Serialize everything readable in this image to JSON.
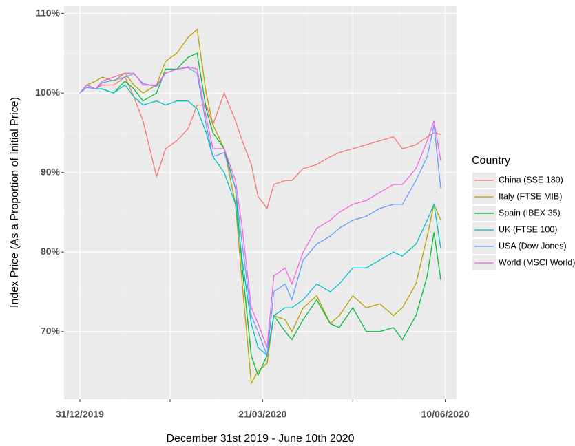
{
  "chart_data": {
    "type": "line",
    "y_label": "Index Price (As a Proportion of Initial Price)",
    "x_label": "December 31st 2019 - June 10th 2020",
    "legend_title": "Country",
    "legend": "right",
    "grid": true,
    "x": [
      "2019-12-31",
      "2020-01-03",
      "2020-01-07",
      "2020-01-10",
      "2020-01-15",
      "2020-01-20",
      "2020-01-24",
      "2020-01-28",
      "2020-02-03",
      "2020-02-07",
      "2020-02-12",
      "2020-02-17",
      "2020-02-21",
      "2020-02-25",
      "2020-02-28",
      "2020-03-04",
      "2020-03-09",
      "2020-03-12",
      "2020-03-16",
      "2020-03-19",
      "2020-03-23",
      "2020-03-26",
      "2020-03-31",
      "2020-04-03",
      "2020-04-08",
      "2020-04-14",
      "2020-04-20",
      "2020-04-24",
      "2020-04-30",
      "2020-05-06",
      "2020-05-12",
      "2020-05-18",
      "2020-05-22",
      "2020-05-28",
      "2020-06-02",
      "2020-06-05",
      "2020-06-08"
    ],
    "xlim": [
      "2019-12-24",
      "2020-06-15"
    ],
    "xticks": [
      {
        "value": "2019-12-31",
        "label": "31/12/2019"
      },
      {
        "value": "2020-02-09",
        "label": null
      },
      {
        "value": "2020-03-21",
        "label": "21/03/2020"
      },
      {
        "value": "2020-04-30",
        "label": null
      },
      {
        "value": "2020-06-10",
        "label": "10/06/2020"
      }
    ],
    "ylim": [
      61.5,
      111
    ],
    "yticks": [
      {
        "value": 70,
        "label": "70%"
      },
      {
        "value": 80,
        "label": "80%"
      },
      {
        "value": 90,
        "label": "90%"
      },
      {
        "value": 100,
        "label": "100%"
      },
      {
        "value": 110,
        "label": "110%"
      }
    ],
    "series": [
      {
        "name": "China (SSE 180)",
        "color": "#F8766D",
        "values": [
          100,
          101,
          100.5,
          101,
          101,
          102,
          99.5,
          96.5,
          89.5,
          93,
          94,
          95.5,
          98.5,
          98.5,
          96,
          100,
          96.5,
          94,
          91,
          87,
          85.5,
          88.5,
          89,
          89,
          90.5,
          91,
          92,
          92.5,
          93,
          93.5,
          94,
          94.5,
          93,
          93.5,
          94.5,
          95,
          94.8
        ]
      },
      {
        "name": "Italy (FTSE MIB)",
        "color": "#B79F00",
        "values": [
          100,
          101,
          101.5,
          102,
          101.5,
          102.5,
          101,
          100,
          101,
          104,
          105,
          107,
          108,
          100,
          96,
          93,
          86,
          76,
          63.5,
          65,
          66,
          72,
          71.5,
          70,
          73,
          74.5,
          71,
          72,
          74.5,
          73,
          73.5,
          72,
          73,
          76,
          82,
          86,
          84
        ]
      },
      {
        "name": "Spain (IBEX 35)",
        "color": "#00BA38",
        "values": [
          100,
          101,
          100.5,
          100.5,
          100,
          101.5,
          100.5,
          99,
          100,
          103,
          103,
          104.5,
          105,
          98,
          95,
          93,
          88,
          78,
          67,
          64.5,
          67,
          72,
          70,
          69,
          71.5,
          74,
          71,
          70.5,
          73,
          70,
          70,
          70.5,
          69,
          72,
          77,
          82.5,
          76.5
        ]
      },
      {
        "name": "UK (FTSE 100)",
        "color": "#00BFC4",
        "values": [
          100,
          101,
          100.5,
          100.5,
          100,
          101,
          99.5,
          98.5,
          99,
          98.5,
          99,
          99,
          98,
          95,
          92,
          90,
          86,
          79,
          71,
          68,
          67,
          72,
          73,
          73,
          74,
          76,
          75,
          76,
          78,
          78,
          79,
          80,
          79.5,
          81,
          84,
          86,
          80.5
        ]
      },
      {
        "name": "USA (Dow Jones)",
        "color": "#619CFF",
        "values": [
          100,
          100.7,
          100.5,
          101.3,
          101.6,
          102,
          102.4,
          101.2,
          100.8,
          102.5,
          103,
          103.2,
          102.5,
          96,
          92,
          92.5,
          88,
          81,
          72,
          70,
          67,
          75,
          76,
          74,
          79,
          81,
          82,
          83,
          84,
          84.5,
          85.5,
          86,
          86,
          89,
          92,
          96,
          88
        ]
      },
      {
        "name": "World (MSCI World)",
        "color": "#F564E3",
        "values": [
          100,
          101,
          100.5,
          101.5,
          102,
          102.5,
          102.5,
          101,
          101,
          102.5,
          103,
          103.3,
          103,
          97,
          93,
          93,
          89,
          83,
          73,
          71,
          68,
          77,
          78,
          76,
          80,
          83,
          84,
          85,
          86,
          86.5,
          87.5,
          88.5,
          88.5,
          90.5,
          94,
          96.5,
          91.5
        ]
      }
    ]
  }
}
